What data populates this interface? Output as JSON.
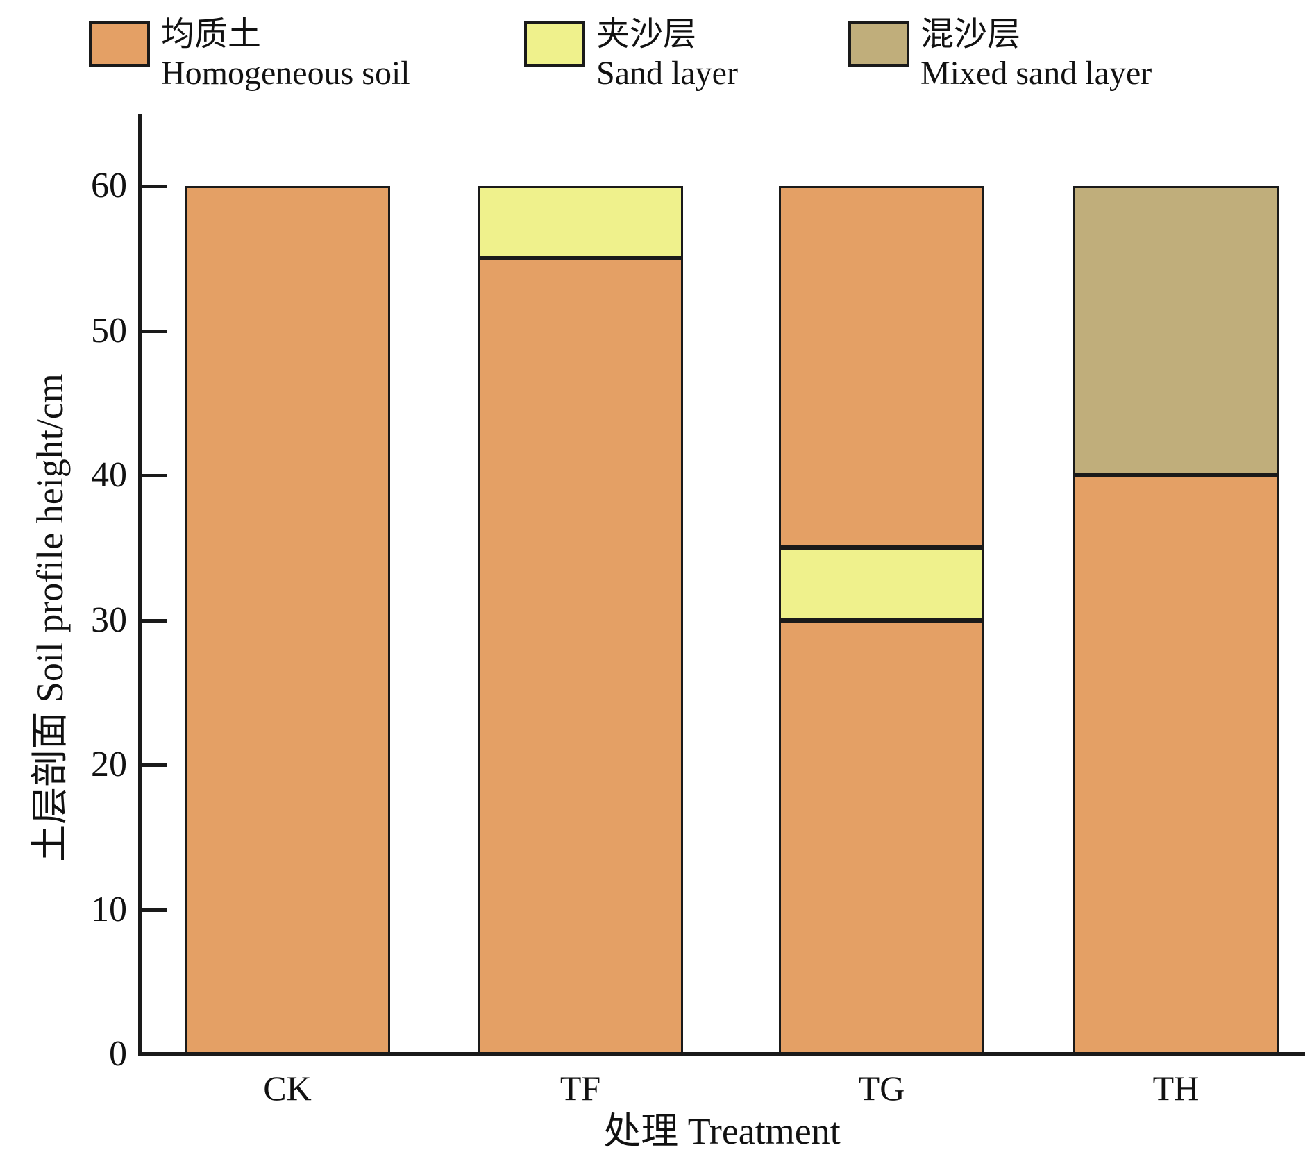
{
  "figure_title": "",
  "colors": {
    "axis_and_border": "#1a1a1a",
    "text": "#111111",
    "background": "#ffffff"
  },
  "chart_data": {
    "type": "bar",
    "subtype": "stacked-profile",
    "title": "",
    "xlabel": "处理  Treatment",
    "ylabel": "土层剖面  Soil profile height/cm",
    "categories": [
      "CK",
      "TF",
      "TG",
      "TH"
    ],
    "yticks": [
      0,
      10,
      20,
      30,
      40,
      50,
      60
    ],
    "ylim": [
      0,
      65
    ],
    "grid": false,
    "legend_position": "top",
    "legend": [
      {
        "key": "homogeneous_soil",
        "label_zh": "均质土",
        "label_en": "Homogeneous soil",
        "color": "#E4A065"
      },
      {
        "key": "sand_layer",
        "label_zh": "夹沙层",
        "label_en": "Sand layer",
        "color": "#EFF18C"
      },
      {
        "key": "mixed_sand_layer",
        "label_zh": "混沙层",
        "label_en": "Mixed sand layer",
        "color": "#C0AE7B"
      }
    ],
    "bars": [
      {
        "category": "CK",
        "segments": [
          {
            "layer": "homogeneous_soil",
            "from": 0,
            "to": 60
          }
        ]
      },
      {
        "category": "TF",
        "segments": [
          {
            "layer": "homogeneous_soil",
            "from": 0,
            "to": 55
          },
          {
            "layer": "sand_layer",
            "from": 55,
            "to": 60
          }
        ]
      },
      {
        "category": "TG",
        "segments": [
          {
            "layer": "homogeneous_soil",
            "from": 0,
            "to": 30
          },
          {
            "layer": "sand_layer",
            "from": 30,
            "to": 35
          },
          {
            "layer": "homogeneous_soil",
            "from": 35,
            "to": 60
          }
        ]
      },
      {
        "category": "TH",
        "segments": [
          {
            "layer": "homogeneous_soil",
            "from": 0,
            "to": 40
          },
          {
            "layer": "mixed_sand_layer",
            "from": 40,
            "to": 60
          }
        ]
      }
    ]
  }
}
